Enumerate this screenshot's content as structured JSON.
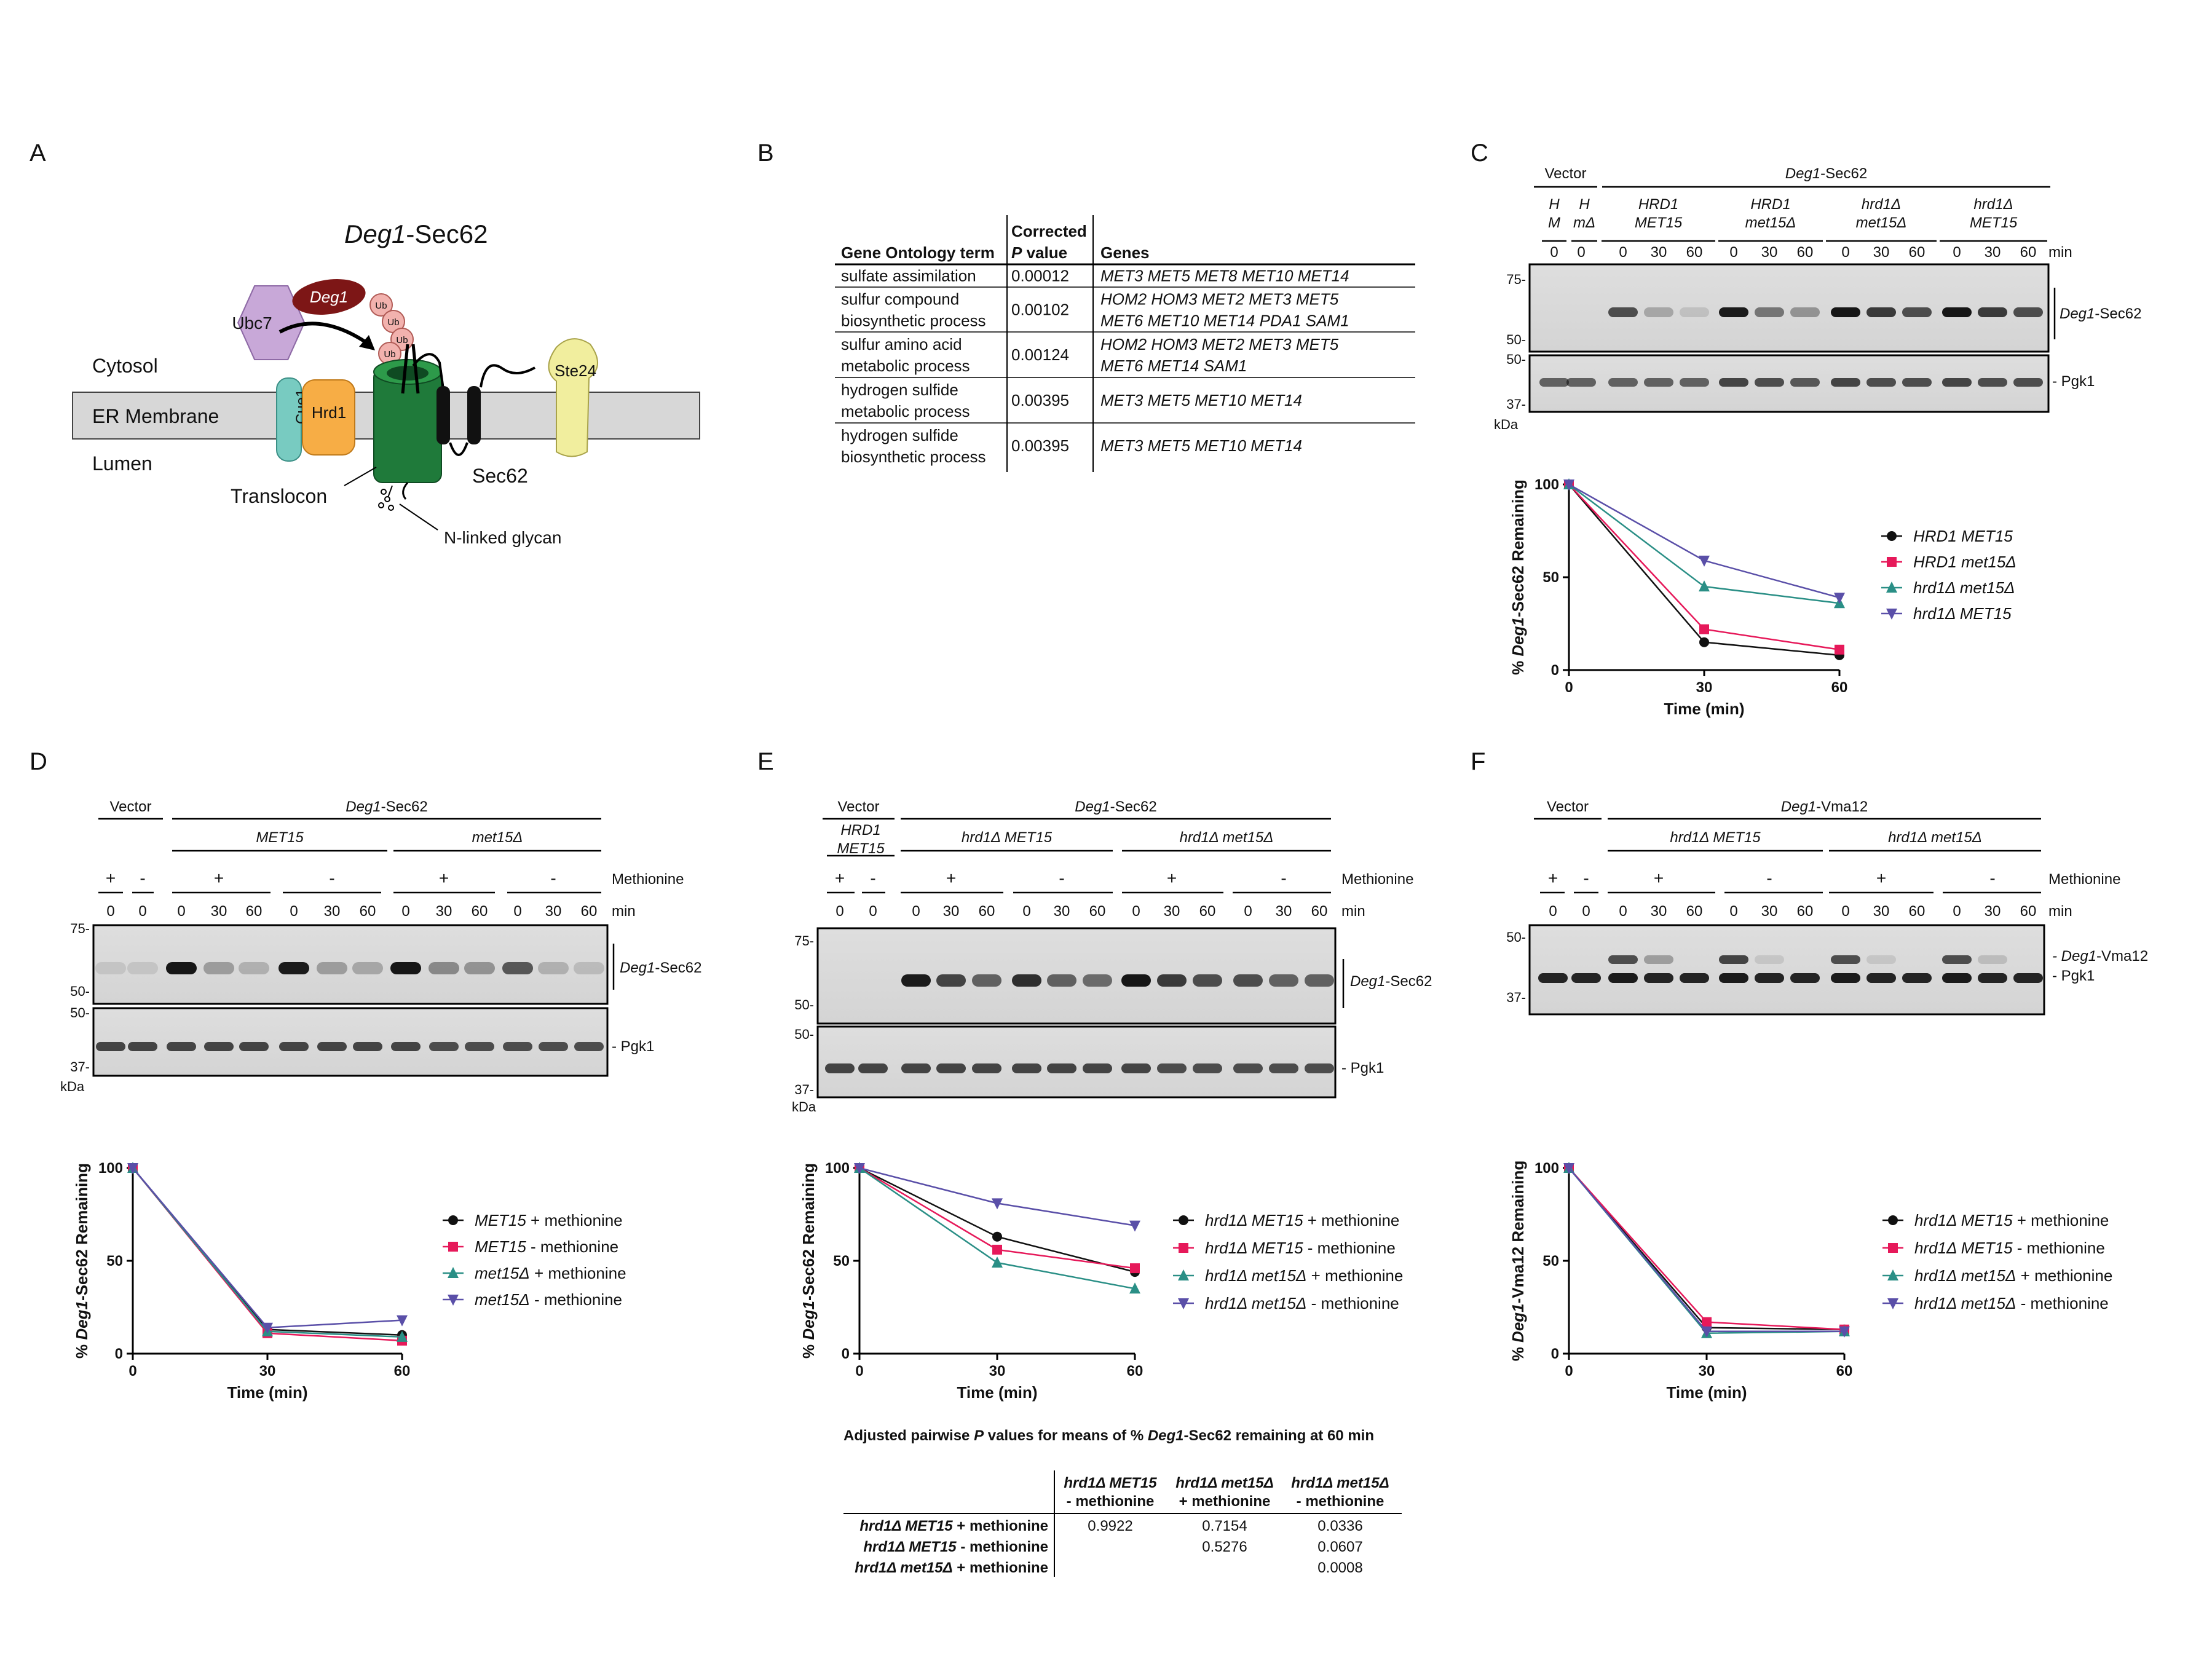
{
  "panel_labels": [
    "A",
    "B",
    "C",
    "D",
    "E",
    "F"
  ],
  "panelA": {
    "title_italic": "Deg1",
    "title_rest": "-Sec62",
    "deg1": "Deg1",
    "ub": "Ub",
    "ubc7": "Ubc7",
    "cue1": "Cue1",
    "hrd1": "Hrd1",
    "ste24": "Ste24",
    "cytosol": "Cytosol",
    "er_membrane": "ER Membrane",
    "lumen": "Lumen",
    "translocon": "Translocon",
    "sec62": "Sec62",
    "glycan": "N-linked glycan"
  },
  "panelB": {
    "headers": [
      "Gene Ontology term",
      "Corrected",
      "P value",
      "Genes"
    ],
    "rows": [
      {
        "term": [
          "sulfate assimilation"
        ],
        "p": "0.00012",
        "genes": [
          "MET3 MET5 MET8 MET10 MET14"
        ]
      },
      {
        "term": [
          "sulfur compound",
          "biosynthetic process"
        ],
        "p": "0.00102",
        "genes": [
          "HOM2 HOM3 MET2 MET3 MET5",
          "MET6 MET10 MET14 PDA1 SAM1"
        ]
      },
      {
        "term": [
          "sulfur amino acid",
          "metabolic process"
        ],
        "p": "0.00124",
        "genes": [
          "HOM2 HOM3 MET2 MET3 MET5",
          "MET6 MET14 SAM1"
        ]
      },
      {
        "term": [
          "hydrogen sulfide",
          "metabolic process"
        ],
        "p": "0.00395",
        "genes": [
          "MET3 MET5 MET10 MET14"
        ]
      },
      {
        "term": [
          "hydrogen sulfide",
          "biosynthetic process"
        ],
        "p": "0.00395",
        "genes": [
          "MET3 MET5 MET10 MET14"
        ]
      }
    ]
  },
  "panelC": {
    "vector": "Vector",
    "construct_italic": "Deg1",
    "construct_rest": "-Sec62",
    "v_lanes": [
      "H",
      "M",
      "H",
      "mΔ"
    ],
    "groups": [
      [
        "HRD1",
        "MET15"
      ],
      [
        "HRD1",
        "met15Δ"
      ],
      [
        "hrd1Δ",
        "met15Δ"
      ],
      [
        "hrd1Δ",
        "MET15"
      ]
    ],
    "times": [
      "0",
      "0",
      "0",
      "30",
      "60",
      "0",
      "30",
      "60",
      "0",
      "30",
      "60",
      "0",
      "30",
      "60"
    ],
    "min": "min",
    "mw_top": [
      "75-",
      "50-"
    ],
    "mw_bot": [
      "50-",
      "37-"
    ],
    "kda": "kDa",
    "band_label_italic": "Deg1",
    "band_label_rest": "-Sec62",
    "pgk1": "- Pgk1"
  },
  "panelD": {
    "vector": "Vector",
    "construct_italic": "Deg1",
    "construct_rest": "-Sec62",
    "groups": [
      "MET15",
      "met15Δ"
    ],
    "met": [
      "+",
      "-",
      "+",
      "-",
      "+",
      "-"
    ],
    "methionine": "Methionine",
    "times": [
      "0",
      "0",
      "0",
      "30",
      "60",
      "0",
      "30",
      "60",
      "0",
      "30",
      "60",
      "0",
      "30",
      "60"
    ],
    "min": "min",
    "mw_top": [
      "75-",
      "50-"
    ],
    "mw_bot": [
      "50-",
      "37-"
    ],
    "kda": "kDa",
    "band_label_italic": "Deg1",
    "band_label_rest": "-Sec62",
    "pgk1": "- Pgk1"
  },
  "panelE": {
    "vector": "Vector",
    "vector_strain": [
      "HRD1",
      "MET15"
    ],
    "construct_italic": "Deg1",
    "construct_rest": "-Sec62",
    "groups": [
      "hrd1Δ MET15",
      "hrd1Δ met15Δ"
    ],
    "met": [
      "+",
      "-",
      "+",
      "-",
      "+",
      "-"
    ],
    "methionine": "Methionine",
    "times": [
      "0",
      "0",
      "0",
      "30",
      "60",
      "0",
      "30",
      "60",
      "0",
      "30",
      "60",
      "0",
      "30",
      "60"
    ],
    "min": "min",
    "mw_top": [
      "75-",
      "50-"
    ],
    "mw_bot": [
      "50-",
      "37-"
    ],
    "kda": "kDa",
    "band_label_italic": "Deg1",
    "band_label_rest": "-Sec62",
    "pgk1": "- Pgk1"
  },
  "panelF": {
    "vector": "Vector",
    "construct_italic": "Deg1",
    "construct_rest": "-Vma12",
    "groups": [
      "hrd1Δ MET15",
      "hrd1Δ met15Δ"
    ],
    "met": [
      "+",
      "-",
      "+",
      "-",
      "+",
      "-"
    ],
    "methionine": "Methionine",
    "times": [
      "0",
      "0",
      "0",
      "30",
      "60",
      "0",
      "30",
      "60",
      "0",
      "30",
      "60",
      "0",
      "30",
      "60"
    ],
    "min": "min",
    "mw": [
      "50-",
      "37-"
    ],
    "band1_italic": "- Deg1",
    "band1_rest": "-Vma12",
    "pgk1": "- Pgk1"
  },
  "pvalue_table": {
    "title_pre": "Adjusted pairwise ",
    "title_p": "P",
    "title_mid": " values for means of % ",
    "title_deg": "Deg1",
    "title_post": "-Sec62 remaining at 60 min",
    "col_headers": [
      [
        "hrd1Δ MET15",
        "- methionine"
      ],
      [
        "hrd1Δ met15Δ",
        "+ methionine"
      ],
      [
        "hrd1Δ met15Δ",
        "- methionine"
      ]
    ],
    "rows": [
      {
        "label_it": "hrd1Δ MET15",
        "label_rest": " + methionine",
        "values": [
          "0.9922",
          "0.7154",
          "0.0336"
        ]
      },
      {
        "label_it": "hrd1Δ MET15",
        "label_rest": " - methionine",
        "values": [
          "",
          "0.5276",
          "0.0607"
        ]
      },
      {
        "label_it": "hrd1Δ met15Δ",
        "label_rest": " + methionine",
        "values": [
          "",
          "",
          "0.0008"
        ]
      }
    ]
  },
  "chart_data": [
    {
      "type": "line",
      "panel": "C",
      "ylabel": "% Deg1-Sec62 Remaining",
      "xlabel": "Time (min)",
      "x": [
        0,
        30,
        60
      ],
      "xlim": [
        0,
        60
      ],
      "ylim": [
        0,
        100
      ],
      "yticks": [
        0,
        50,
        100
      ],
      "series": [
        {
          "name": "HRD1 MET15",
          "values": [
            100,
            15,
            8
          ],
          "color": "#111111",
          "marker": "circle"
        },
        {
          "name": "HRD1 met15Δ",
          "values": [
            100,
            22,
            11
          ],
          "color": "#e6195a",
          "marker": "square"
        },
        {
          "name": "hrd1Δ met15Δ",
          "values": [
            100,
            45,
            36
          ],
          "color": "#2a8f86",
          "marker": "triangle-up"
        },
        {
          "name": "hrd1Δ MET15",
          "values": [
            100,
            59,
            39
          ],
          "color": "#5a4fa8",
          "marker": "triangle-down"
        }
      ]
    },
    {
      "type": "line",
      "panel": "D",
      "ylabel": "% Deg1-Sec62 Remaining",
      "xlabel": "Time (min)",
      "x": [
        0,
        30,
        60
      ],
      "xlim": [
        0,
        60
      ],
      "ylim": [
        0,
        100
      ],
      "yticks": [
        0,
        50,
        100
      ],
      "series": [
        {
          "name": "MET15 + methionine",
          "values": [
            100,
            13,
            10
          ],
          "color": "#111111",
          "marker": "circle"
        },
        {
          "name": "MET15 - methionine",
          "values": [
            100,
            11,
            7
          ],
          "color": "#e6195a",
          "marker": "square"
        },
        {
          "name": "met15Δ + methionine",
          "values": [
            100,
            12,
            9
          ],
          "color": "#2a8f86",
          "marker": "triangle-up"
        },
        {
          "name": "met15Δ - methionine",
          "values": [
            100,
            14,
            18
          ],
          "color": "#5a4fa8",
          "marker": "triangle-down"
        }
      ]
    },
    {
      "type": "line",
      "panel": "E",
      "ylabel": "% Deg1-Sec62 Remaining",
      "xlabel": "Time (min)",
      "x": [
        0,
        30,
        60
      ],
      "xlim": [
        0,
        60
      ],
      "ylim": [
        0,
        100
      ],
      "yticks": [
        0,
        50,
        100
      ],
      "series": [
        {
          "name": "hrd1Δ MET15 + methionine",
          "values": [
            100,
            63,
            44
          ],
          "color": "#111111",
          "marker": "circle"
        },
        {
          "name": "hrd1Δ MET15 - methionine",
          "values": [
            100,
            56,
            46
          ],
          "color": "#e6195a",
          "marker": "square"
        },
        {
          "name": "hrd1Δ met15Δ + methionine",
          "values": [
            100,
            49,
            35
          ],
          "color": "#2a8f86",
          "marker": "triangle-up"
        },
        {
          "name": "hrd1Δ met15Δ - methionine",
          "values": [
            100,
            81,
            69
          ],
          "color": "#5a4fa8",
          "marker": "triangle-down"
        }
      ]
    },
    {
      "type": "line",
      "panel": "F",
      "ylabel": "% Deg1-Vma12 Remaining",
      "xlabel": "Time (min)",
      "x": [
        0,
        30,
        60
      ],
      "xlim": [
        0,
        60
      ],
      "ylim": [
        0,
        100
      ],
      "yticks": [
        0,
        50,
        100
      ],
      "series": [
        {
          "name": "hrd1Δ MET15 + methionine",
          "values": [
            100,
            14,
            13
          ],
          "color": "#111111",
          "marker": "circle"
        },
        {
          "name": "hrd1Δ MET15 - methionine",
          "values": [
            100,
            17,
            13
          ],
          "color": "#e6195a",
          "marker": "square"
        },
        {
          "name": "hrd1Δ met15Δ + methionine",
          "values": [
            100,
            11,
            12
          ],
          "color": "#2a8f86",
          "marker": "triangle-up"
        },
        {
          "name": "hrd1Δ met15Δ - methionine",
          "values": [
            100,
            12,
            12
          ],
          "color": "#5a4fa8",
          "marker": "triangle-down"
        }
      ]
    }
  ]
}
